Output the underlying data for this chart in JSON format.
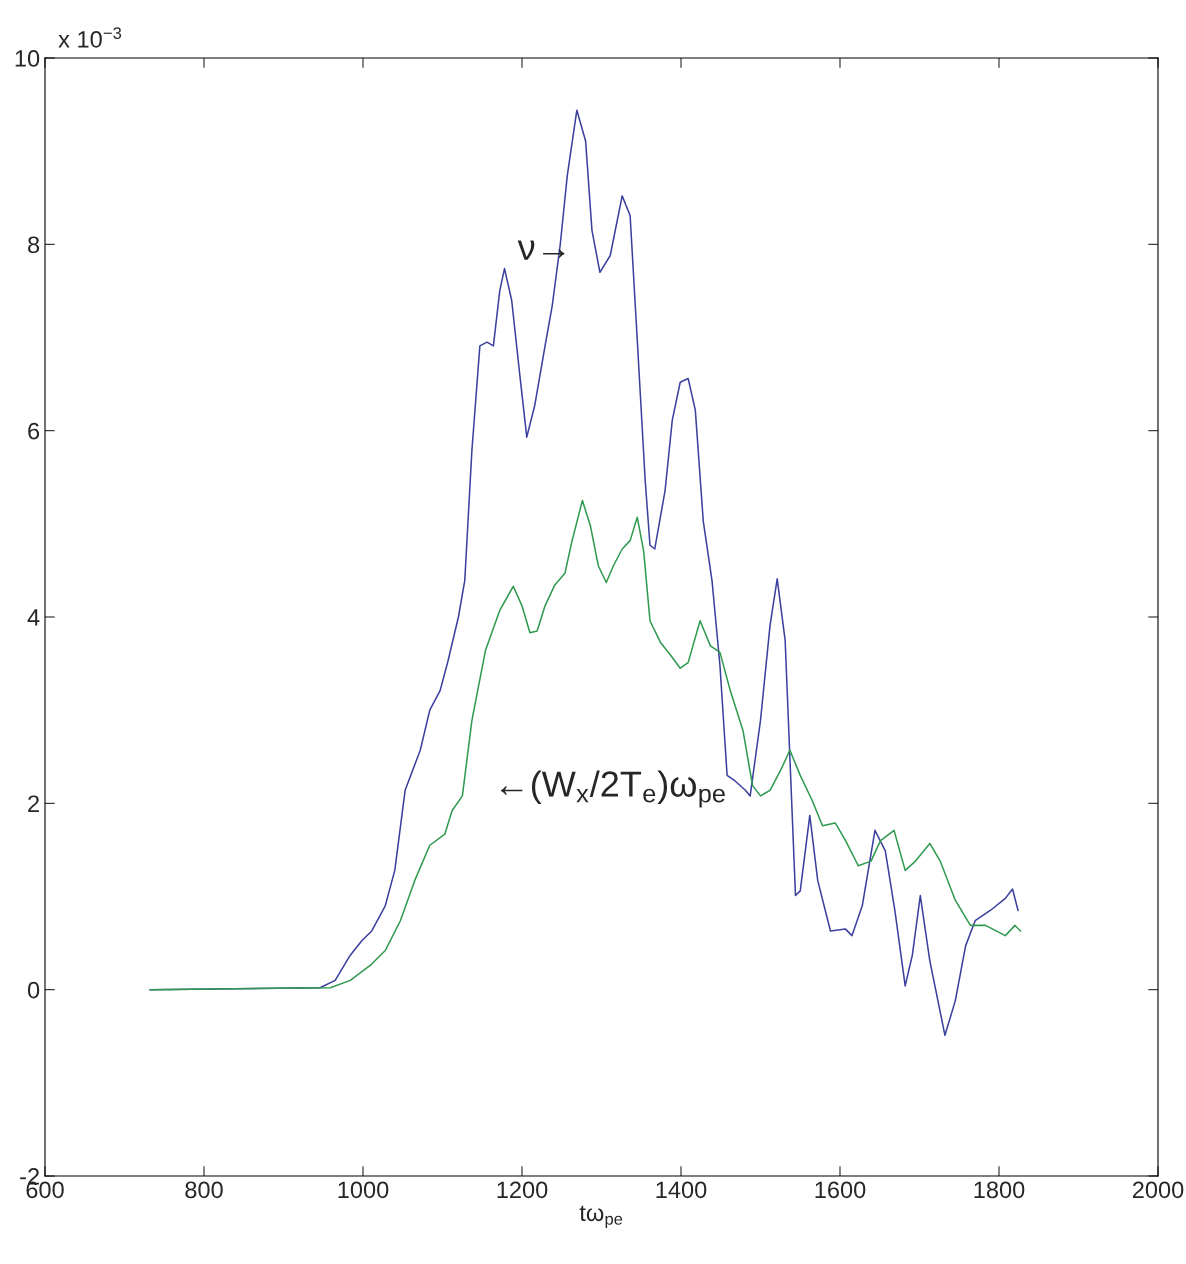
{
  "chart_data": {
    "type": "line",
    "xlabel": "tω$_{pe}$",
    "xlim": [
      600,
      2000
    ],
    "xticks": [
      600,
      800,
      1000,
      1200,
      1400,
      1600,
      1800,
      2000
    ],
    "ylim": [
      -2,
      10
    ],
    "yticks": [
      -2,
      0,
      2,
      4,
      6,
      8,
      10
    ],
    "grid": false,
    "line_style": "solid",
    "marker": "none",
    "annotations": [
      "x 10$^{−3}$",
      "ν→",
      "←(W$_{x}$/2T$_{e}$)ω$_{pe}$"
    ],
    "series": [
      {
        "color": "#3b3f9e",
        "x": [
          732,
          946,
          965,
          984,
          999,
          1011,
          1028,
          1040,
          1053,
          1072,
          1084,
          1097,
          1107,
          1120,
          1128,
          1137,
          1147,
          1156,
          1164,
          1172,
          1178,
          1187,
          1198,
          1206,
          1216,
          1229,
          1238,
          1248,
          1257,
          1269,
          1280,
          1288,
          1298,
          1311,
          1326,
          1336,
          1345,
          1355,
          1361,
          1367,
          1380,
          1389,
          1399,
          1409,
          1418,
          1428,
          1439,
          1449,
          1458,
          1468,
          1481,
          1487,
          1500,
          1512,
          1521,
          1531,
          1544,
          1550,
          1562,
          1572,
          1588,
          1607,
          1615,
          1628,
          1644,
          1657,
          1669,
          1682,
          1691,
          1701,
          1713,
          1732,
          1745,
          1758,
          1770,
          1789,
          1808,
          1817,
          1824
        ],
        "values": [
          0,
          0.02,
          0.1,
          0.37,
          0.53,
          0.63,
          0.9,
          1.28,
          2.14,
          2.57,
          3.0,
          3.21,
          3.53,
          4.0,
          4.39,
          5.79,
          6.91,
          6.95,
          6.91,
          7.5,
          7.74,
          7.4,
          6.54,
          5.93,
          6.27,
          6.91,
          7.34,
          7.99,
          8.74,
          9.44,
          9.11,
          8.15,
          7.7,
          7.88,
          8.52,
          8.31,
          6.97,
          5.46,
          4.77,
          4.73,
          5.36,
          6.11,
          6.52,
          6.56,
          6.22,
          5.03,
          4.39,
          3.48,
          2.3,
          2.24,
          2.14,
          2.08,
          2.89,
          3.91,
          4.41,
          3.75,
          1.01,
          1.06,
          1.87,
          1.17,
          0.63,
          0.65,
          0.58,
          0.9,
          1.71,
          1.49,
          0.85,
          0.04,
          0.37,
          1.01,
          0.31,
          -0.49,
          -0.12,
          0.47,
          0.74,
          0.85,
          0.98,
          1.08,
          0.85
        ]
      },
      {
        "color": "#2f9a4f",
        "x": [
          732,
          959,
          984,
          1009,
          1028,
          1047,
          1065,
          1084,
          1103,
          1112,
          1125,
          1137,
          1154,
          1172,
          1189,
          1200,
          1210,
          1219,
          1229,
          1241,
          1254,
          1263,
          1276,
          1286,
          1296,
          1306,
          1315,
          1326,
          1336,
          1345,
          1353,
          1361,
          1374,
          1387,
          1399,
          1409,
          1424,
          1437,
          1449,
          1462,
          1478,
          1490,
          1500,
          1512,
          1525,
          1537,
          1550,
          1565,
          1578,
          1594,
          1607,
          1623,
          1639,
          1651,
          1668,
          1682,
          1695,
          1713,
          1726,
          1745,
          1764,
          1783,
          1808,
          1820,
          1827
        ],
        "values": [
          0,
          0.02,
          0.1,
          0.26,
          0.42,
          0.74,
          1.17,
          1.55,
          1.67,
          1.92,
          2.08,
          2.89,
          3.64,
          4.07,
          4.33,
          4.12,
          3.83,
          3.85,
          4.12,
          4.34,
          4.47,
          4.82,
          5.25,
          4.98,
          4.55,
          4.37,
          4.55,
          4.73,
          4.82,
          5.07,
          4.71,
          3.96,
          3.73,
          3.59,
          3.45,
          3.51,
          3.96,
          3.69,
          3.62,
          3.21,
          2.78,
          2.19,
          2.08,
          2.14,
          2.35,
          2.57,
          2.3,
          2.03,
          1.76,
          1.79,
          1.6,
          1.33,
          1.38,
          1.6,
          1.71,
          1.28,
          1.38,
          1.57,
          1.38,
          0.96,
          0.69,
          0.69,
          0.58,
          0.69,
          0.63
        ]
      }
    ]
  }
}
